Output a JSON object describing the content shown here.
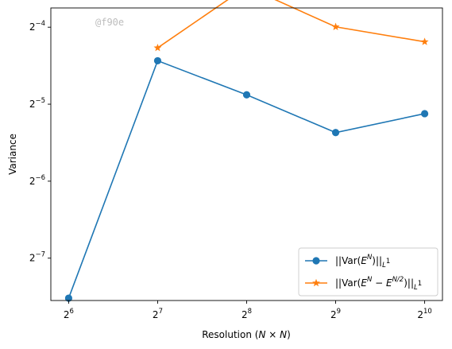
{
  "watermark": "@f90e",
  "chart_data": {
    "type": "line",
    "xlabel_prefix": "Resolution (",
    "xlabel_math": "N × N",
    "xlabel_suffix": ")",
    "ylabel": "Variance",
    "x_scale": "log2",
    "y_scale": "log2",
    "x": [
      64,
      128,
      256,
      512,
      1024
    ],
    "x_ticks": [
      {
        "base": "2",
        "exp": "6"
      },
      {
        "base": "2",
        "exp": "7"
      },
      {
        "base": "2",
        "exp": "8"
      },
      {
        "base": "2",
        "exp": "9"
      },
      {
        "base": "2",
        "exp": "10"
      }
    ],
    "y_ticks": [
      {
        "base": "2",
        "exp": "−7",
        "value": -7
      },
      {
        "base": "2",
        "exp": "−6",
        "value": -6
      },
      {
        "base": "2",
        "exp": "−5",
        "value": -5
      },
      {
        "base": "2",
        "exp": "−4",
        "value": -4
      }
    ],
    "xlim_exp": [
      5.8,
      10.2
    ],
    "ylim_exp": [
      -7.55,
      -3.75
    ],
    "grid": false,
    "legend_position": "lower-right",
    "series": [
      {
        "name_parts": {
          "pre": "||Var(",
          "E": "E",
          "sup": "N",
          "post": ")||",
          "sub": "L",
          "subsup": "1"
        },
        "color": "#1f77b4",
        "marker": "circle",
        "x": [
          64,
          128,
          256,
          512,
          1024
        ],
        "y": [
          0.00545,
          0.0462,
          0.034,
          0.0242,
          0.0287
        ]
      },
      {
        "name_parts": {
          "pre": "||Var(",
          "E": "E",
          "sup": "N",
          "mid": " − ",
          "E2": "E",
          "sup2": "N/2",
          "post": ")||",
          "sub": "L",
          "subsup": "1"
        },
        "color": "#ff7f0e",
        "marker": "star",
        "x": [
          128,
          256,
          512,
          1024
        ],
        "y": [
          0.0519,
          0.0899,
          0.0627,
          0.0548
        ]
      }
    ]
  }
}
